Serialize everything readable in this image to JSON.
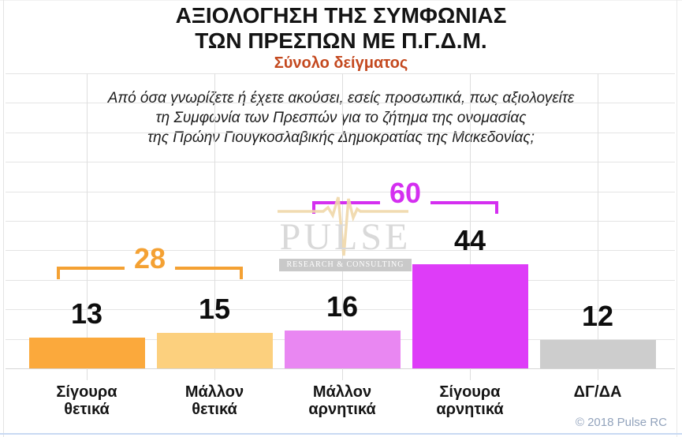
{
  "header": {
    "title_line1": "ΑΞΙΟΛΟΓΗΣΗ ΤΗΣ ΣΥΜΦΩΝΙΑΣ",
    "title_line2": "ΤΩΝ ΠΡΕΣΠΩΝ ΜΕ Π.Γ.Δ.Μ.",
    "subtitle": "Σύνολο δείγματος",
    "subtitle_color": "#c4491f"
  },
  "question": {
    "line1": "Από όσα γνωρίζετε ή έχετε ακούσει, εσείς προσωπικά, πως αξιολογείτε",
    "line2": "τη Συμφωνία των Πρεσπών για το ζήτημα της ονομασίας",
    "line3": "της Πρώην Γιουγκοσλαβικής Δημοκρατίας της Μακεδονίας;"
  },
  "chart_data": {
    "type": "bar",
    "categories": [
      "Σίγουρα θετικά",
      "Μάλλον θετικά",
      "Μάλλον αρνητικά",
      "Σίγουρα αρνητικά",
      "ΔΓ/ΔΑ"
    ],
    "values": [
      13,
      15,
      16,
      44,
      12
    ],
    "bar_colors": [
      "#fba93c",
      "#fcd07e",
      "#e987f2",
      "#de3cf8",
      "#cdcdcd"
    ],
    "data_labels_shown": true,
    "value_axis_visible": false,
    "grid": true,
    "ylim": [
      0,
      50
    ],
    "annotations": [
      {
        "type": "group-bracket",
        "label": "28",
        "from_index": 0,
        "to_index": 1,
        "color": "#f4a133"
      },
      {
        "type": "group-bracket",
        "label": "60",
        "from_index": 2,
        "to_index": 3,
        "color": "#d42ff0"
      }
    ]
  },
  "watermark": {
    "brand": "PULSE",
    "tagline": "RESEARCH & CONSULTING"
  },
  "footer": {
    "copyright": "© 2018 Pulse RC"
  }
}
